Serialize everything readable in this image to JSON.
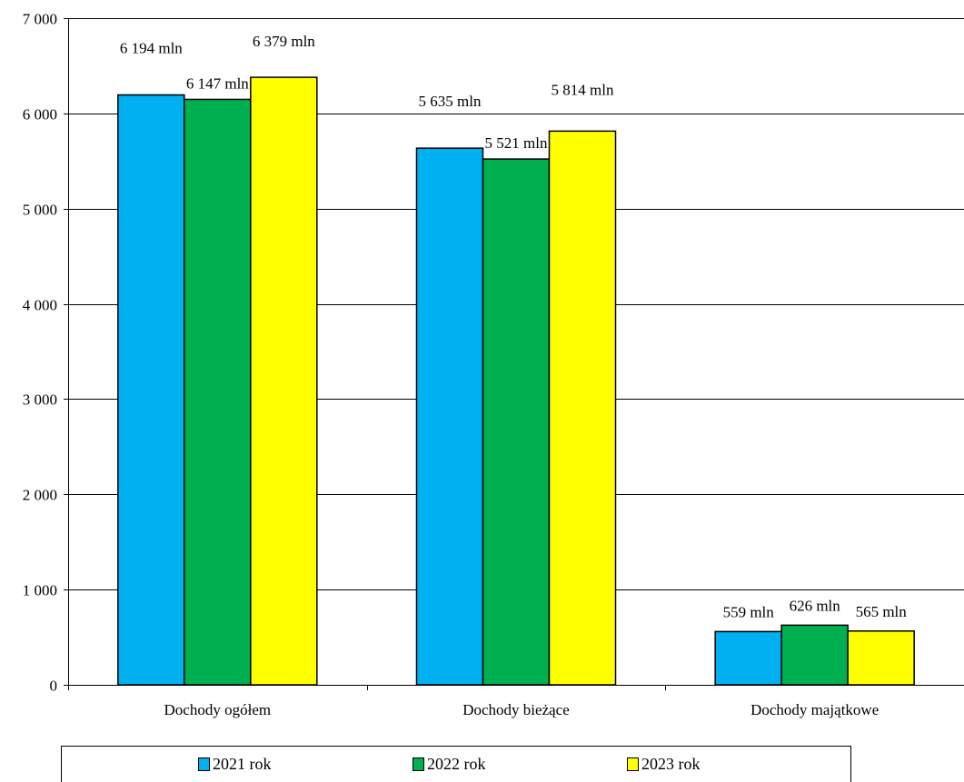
{
  "chart_data": {
    "type": "bar",
    "categories": [
      "Dochody ogółem",
      "Dochody bieżące",
      "Dochody majątkowe"
    ],
    "series": [
      {
        "name": "2021 rok",
        "color": "#00b0f0",
        "values": [
          6194,
          5635,
          559
        ],
        "labels": [
          "6 194 mln",
          "5 635 mln",
          "559 mln"
        ]
      },
      {
        "name": "2022 rok",
        "color": "#00b050",
        "values": [
          6147,
          5521,
          626
        ],
        "labels": [
          "6 147 mln",
          "5 521 mln",
          "626 mln"
        ]
      },
      {
        "name": "2023 rok",
        "color": "#ffff00",
        "values": [
          6379,
          5814,
          565
        ],
        "labels": [
          "6 379 mln",
          "5 814 mln",
          "565 mln"
        ]
      }
    ],
    "ylim": [
      0,
      7000
    ],
    "yticks": [
      0,
      1000,
      2000,
      3000,
      4000,
      5000,
      6000,
      7000
    ],
    "ytick_labels": [
      "0",
      "1 000",
      "2 000",
      "3 000",
      "4 000",
      "5 000",
      "6 000",
      "7 000"
    ],
    "grid": true,
    "legend_position": "bottom"
  }
}
